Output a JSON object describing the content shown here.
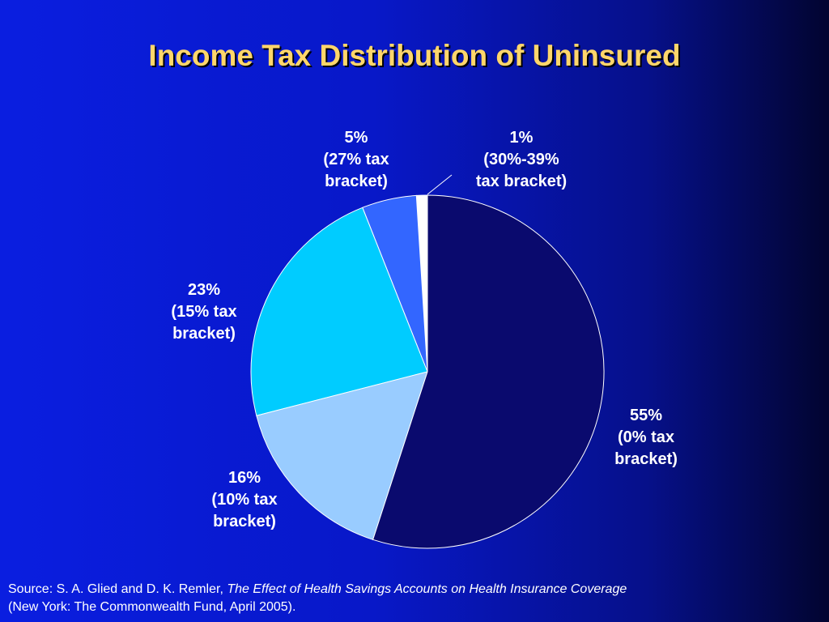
{
  "title": "Income Tax Distribution of Uninsured",
  "chart_data": {
    "type": "pie",
    "title": "Income Tax Distribution of Uninsured",
    "slices": [
      {
        "value": 55,
        "percent_label": "55%",
        "line1": "(0% tax",
        "line2": "bracket)",
        "color": "#0a0a6e"
      },
      {
        "value": 16,
        "percent_label": "16%",
        "line1": "(10% tax",
        "line2": "bracket)",
        "color": "#99ccff"
      },
      {
        "value": 23,
        "percent_label": "23%",
        "line1": "(15% tax",
        "line2": "bracket)",
        "color": "#00ccff"
      },
      {
        "value": 5,
        "percent_label": "5%",
        "line1": "(27% tax",
        "line2": "bracket)",
        "color": "#3366ff"
      },
      {
        "value": 1,
        "percent_label": "1%",
        "line1": "(30%-39%",
        "line2": "tax bracket)",
        "color": "#ffffff"
      }
    ]
  },
  "source": {
    "prefix": "Source: S. A. Glied and D. K. Remler, ",
    "italic": "The Effect of Health Savings Accounts on Health Insurance Coverage",
    "line2": "(New York: The Commonwealth Fund, April 2005)."
  }
}
